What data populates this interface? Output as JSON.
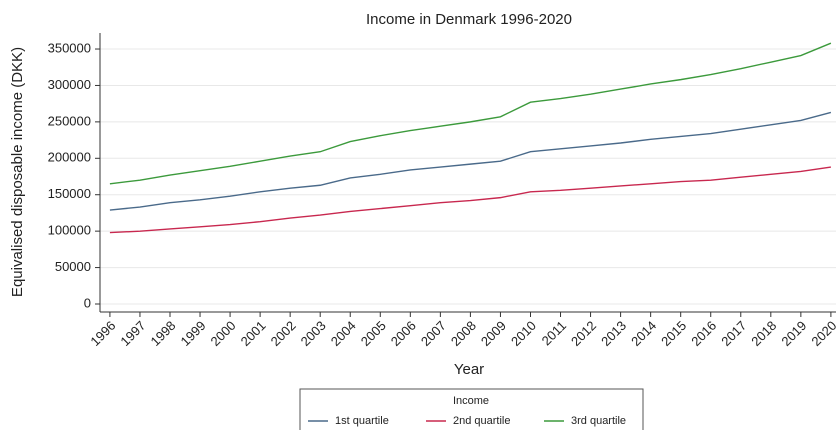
{
  "chart_data": {
    "type": "line",
    "title": "Income in Denmark 1996-2020",
    "x_label": "Year",
    "y_label": "Equivalised disposable income (DKK)",
    "x": [
      1996,
      1997,
      1998,
      1999,
      2000,
      2001,
      2002,
      2003,
      2004,
      2005,
      2006,
      2007,
      2008,
      2009,
      2010,
      2011,
      2012,
      2013,
      2014,
      2015,
      2016,
      2017,
      2018,
      2019,
      2020
    ],
    "series": [
      {
        "name": "1st quartile",
        "color": "#4a6a8a",
        "values": [
          129000,
          133000,
          139000,
          143000,
          148000,
          154000,
          159000,
          163000,
          173000,
          178000,
          184000,
          188000,
          192000,
          196000,
          209000,
          213000,
          217000,
          221000,
          226000,
          230000,
          234000,
          240000,
          246000,
          252000,
          263000
        ]
      },
      {
        "name": "2nd quartile",
        "color": "#c8284f",
        "values": [
          98000,
          100000,
          103000,
          106000,
          109000,
          113000,
          118000,
          122000,
          127000,
          131000,
          135000,
          139000,
          142000,
          146000,
          154000,
          156000,
          159000,
          162000,
          165000,
          168000,
          170000,
          174000,
          178000,
          182000,
          188000
        ]
      },
      {
        "name": "3rd quartile",
        "color": "#3c9a3c",
        "values": [
          165000,
          170000,
          177000,
          183000,
          189000,
          196000,
          203000,
          209000,
          223000,
          231000,
          238000,
          244000,
          250000,
          257000,
          277000,
          282000,
          288000,
          295000,
          302000,
          308000,
          315000,
          323000,
          332000,
          341000,
          358000
        ]
      }
    ],
    "xlim": [
      1995.67,
      2020.17
    ],
    "ylim": [
      -11000,
      372000
    ],
    "xticks": [
      1996,
      1997,
      1998,
      1999,
      2000,
      2001,
      2002,
      2003,
      2004,
      2005,
      2006,
      2007,
      2008,
      2009,
      2010,
      2011,
      2012,
      2013,
      2014,
      2015,
      2016,
      2017,
      2018,
      2019,
      2020
    ],
    "yticks": [
      0,
      50000,
      100000,
      150000,
      200000,
      250000,
      300000,
      350000
    ],
    "grid": true,
    "legend_title": "Income",
    "legend_position": "bottom"
  }
}
